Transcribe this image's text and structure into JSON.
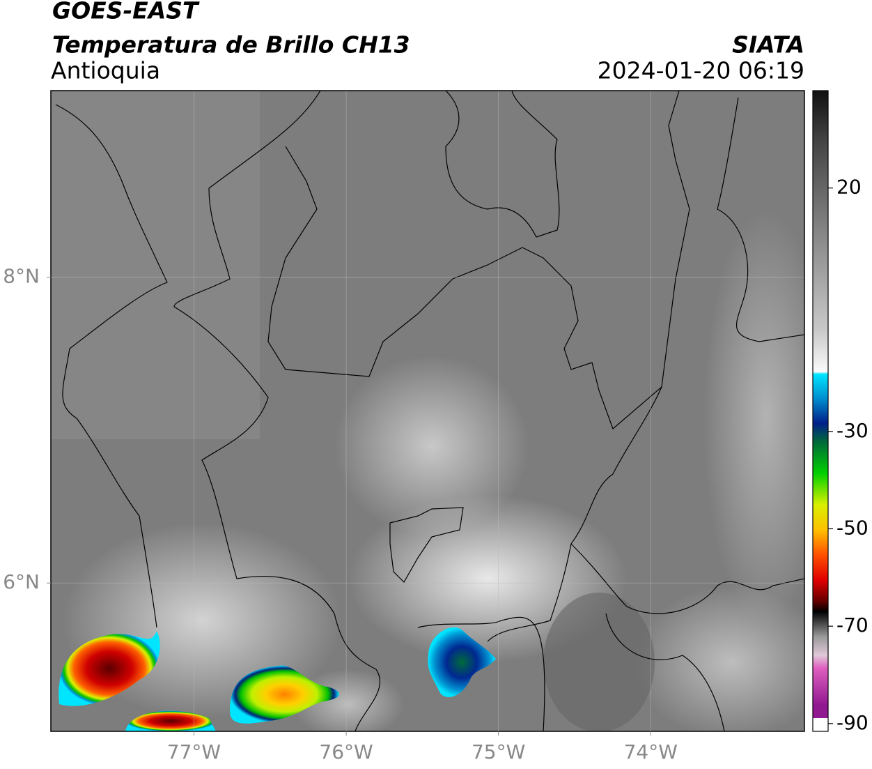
{
  "header": {
    "title": "GOES-EAST",
    "subtitle": "Temperatura de Brillo CH13",
    "region": "Antioquia",
    "source": "SIATA",
    "datetime": "2024-01-20 06:19"
  },
  "map": {
    "xlim": [
      -77.94,
      -72.99
    ],
    "ylim": [
      5.03,
      9.22
    ],
    "xticks": [
      {
        "value": -77,
        "label": "77°W"
      },
      {
        "value": -76,
        "label": "76°W"
      },
      {
        "value": -75,
        "label": "75°W"
      },
      {
        "value": -74,
        "label": "74°W"
      }
    ],
    "yticks": [
      {
        "value": 8,
        "label": "8°N"
      },
      {
        "value": 6,
        "label": "6°N"
      }
    ],
    "grid": true
  },
  "colorbar": {
    "lim": [
      -91.6,
      40
    ],
    "ticks": [
      20,
      -30,
      -50,
      -70,
      -90
    ]
  }
}
